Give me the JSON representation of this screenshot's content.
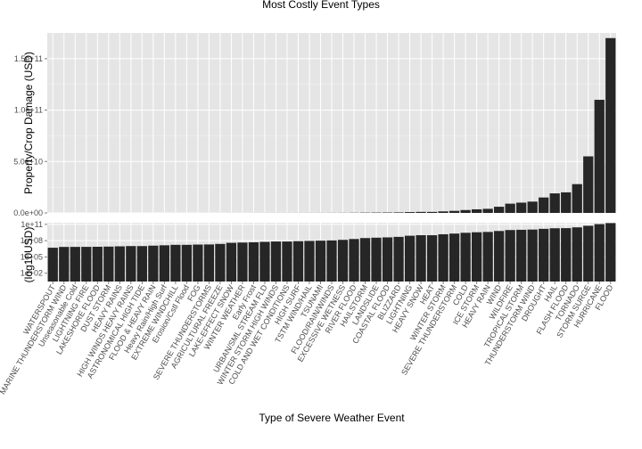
{
  "chart_data": {
    "type": "bar",
    "title": "Most Costly Event Types",
    "xlabel": "Type of Severe Weather Event",
    "categories": [
      "WATERSPOUT",
      "MARINE THUNDERSTORM WIND",
      "Unseasonable Cold",
      "LIGHTNING FIRE",
      "LAKESHORE FLOOD",
      "DUST STORM",
      "HEAVY RAINS",
      "HIGH WINDS HEAVY RAINS",
      "ASTRONOMICAL HIGH TIDE",
      "FLOOD & HEAVY RAIN",
      "Heavy Rain/High Surf",
      "EXTREME WINDCHILL",
      "Erosion/Cstl Flood",
      "FOG",
      "SEVERE THUNDERSTORMS",
      "AGRICULTURAL FREEZE",
      "LAKE-EFFECT SNOW",
      "WINTER WEATHER",
      "Early Frost",
      "URBAN/SML STREAM FLD",
      "WINTER STORM HIGH WINDS",
      "COLD AND WET CONDITIONS",
      "HIGH SURF",
      "TSTM WIND/HAIL",
      "TSUNAMI",
      "FLOOD/RAIN/WINDS",
      "EXCESSIVE WETNESS",
      "RIVER FLOOD",
      "HAILSTORM",
      "LANDSLIDE",
      "COASTAL FLOOD",
      "BLIZZARD",
      "LIGHTNING",
      "HEAVY SNOW",
      "HEAT",
      "WINTER STORM",
      "SEVERE THUNDERSTORM",
      "COLD",
      "ICE STORM",
      "HEAVY RAIN",
      "WIND",
      "WILDFIRE",
      "TROPICAL STORM",
      "THUNDERSTORM WIND",
      "DROUGHT",
      "HAIL",
      "FLASH FLOOD",
      "TORNADO",
      "STORM SURGE",
      "HURRICANE",
      "FLOOD"
    ],
    "values": [
      5000000,
      7000000,
      7100000,
      7200000,
      7500000,
      8000000,
      9000000,
      10000000,
      10000000,
      12000000,
      14000000,
      17000000,
      17000000,
      19000000,
      20000000,
      25000000,
      40000000,
      45000000,
      50000000,
      60000000,
      70000000,
      70000000,
      80000000,
      90000000,
      100000000,
      110000000,
      140000000,
      200000000,
      300000000,
      350000000,
      400000000,
      500000000,
      800000000,
      1000000000,
      1000000000,
      1500000000,
      2000000000,
      2800000000,
      3500000000,
      4000000000,
      6000000000,
      9000000000,
      10000000000,
      11000000000,
      15000000000,
      19000000000,
      20000000000,
      28000000000,
      55000000000,
      110000000000,
      170000000000
    ],
    "panels": [
      {
        "ylabel": "Property/Crop Damage (USD)",
        "scale": "linear",
        "ylim": [
          0,
          175000000000
        ],
        "yticks": [
          0,
          50000000000,
          100000000000,
          150000000000
        ],
        "ytick_labels": [
          "0.0e+00",
          "5.0e+10",
          "1.0e+11",
          "1.5e+11"
        ]
      },
      {
        "ylabel": "(log10USD)",
        "scale": "log10",
        "ylim": [
          3,
          200000000000
        ],
        "yticks": [
          100,
          100000,
          100000000,
          100000000000
        ],
        "ytick_labels": [
          "1e+02",
          "1e+05",
          "1e+08",
          "1e+11"
        ]
      }
    ],
    "grid": true,
    "legend": "none"
  }
}
